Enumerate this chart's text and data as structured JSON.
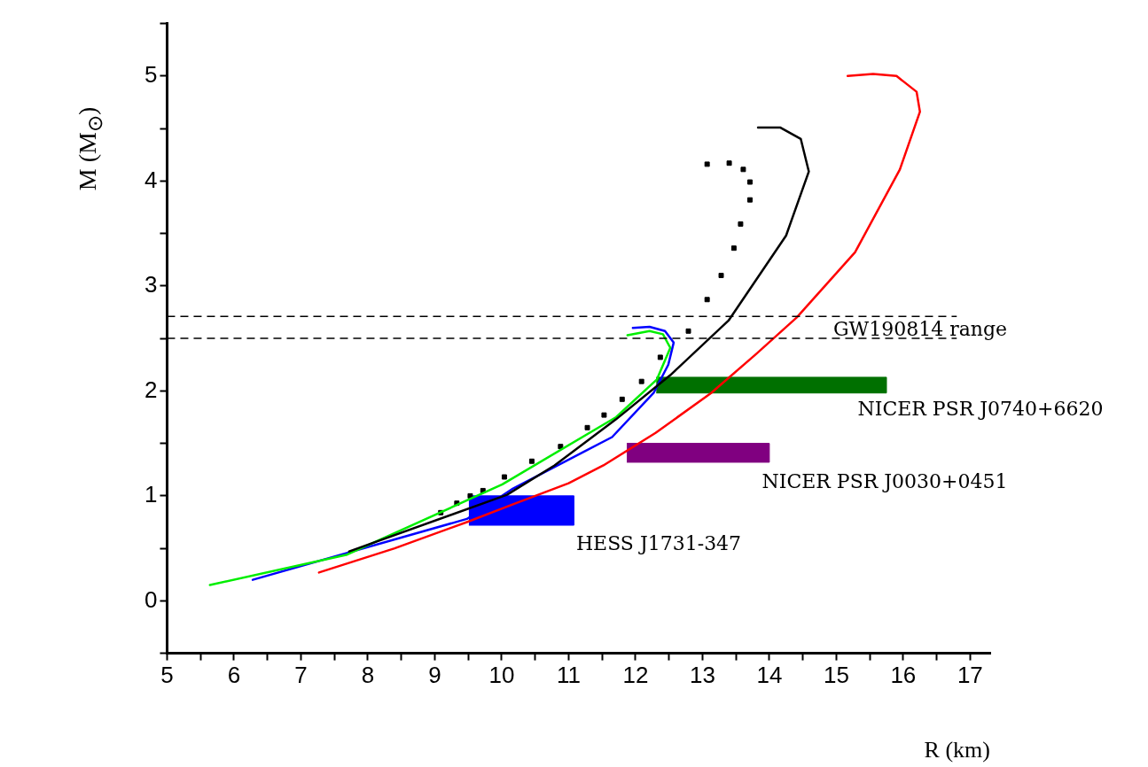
{
  "chart_data": {
    "type": "line",
    "xlabel": "R (km)",
    "ylabel": "M (M$_{⊙}$)",
    "xlim": [
      5,
      17.3
    ],
    "ylim": [
      -0.5,
      5.5
    ],
    "xticks": [
      5,
      {
        "value": 5.5,
        "label": null
      },
      6,
      {
        "value": 6.5,
        "label": null
      },
      7,
      {
        "value": 7.5,
        "label": null
      },
      8,
      {
        "value": 8.5,
        "label": null
      },
      9,
      {
        "value": 9.5,
        "label": null
      },
      10,
      {
        "value": 10.5,
        "label": null
      },
      11,
      {
        "value": 11.5,
        "label": null
      },
      12,
      {
        "value": 12.5,
        "label": null
      },
      13,
      {
        "value": 13.5,
        "label": null
      },
      14,
      {
        "value": 14.5,
        "label": null
      },
      15,
      {
        "value": 15.5,
        "label": null
      },
      16,
      {
        "value": 16.5,
        "label": null
      },
      17
    ],
    "yticks": [
      {
        "value": -0.5,
        "label": null
      },
      0,
      {
        "value": 0.5,
        "label": null
      },
      1,
      {
        "value": 1.5,
        "label": null
      },
      2,
      {
        "value": 2.5,
        "label": null
      },
      3,
      {
        "value": 3.5,
        "label": null
      },
      4,
      {
        "value": 4.5,
        "label": null
      },
      5,
      {
        "value": 5.5,
        "label": null
      }
    ],
    "grid": false,
    "legend": false,
    "series": [
      {
        "type": "area",
        "color": "#007000",
        "x": [
          12.31,
          15.75,
          15.75,
          12.31
        ],
        "values": [
          1.98,
          1.98,
          2.13,
          2.13
        ]
      },
      {
        "type": "area",
        "color": "#800080",
        "x": [
          11.87,
          14.0,
          14.0,
          11.87
        ],
        "values": [
          1.32,
          1.32,
          1.5,
          1.5
        ]
      },
      {
        "type": "area",
        "color": "#0000ff",
        "x": [
          9.51,
          11.08,
          11.08,
          9.51
        ],
        "values": [
          0.72,
          0.72,
          1.0,
          1.0
        ]
      },
      {
        "color": "#ff0000",
        "x": [
          7.27,
          8.4,
          9.48,
          10.17,
          11.0,
          11.52,
          12.3,
          13.13,
          13.8,
          14.41,
          15.28,
          15.95,
          16.25,
          16.2,
          15.9,
          15.55,
          15.17
        ],
        "values": [
          0.27,
          0.5,
          0.75,
          0.92,
          1.12,
          1.29,
          1.6,
          1.98,
          2.35,
          2.7,
          3.32,
          4.11,
          4.66,
          4.85,
          5.0,
          5.02,
          5.0
        ]
      },
      {
        "color": "#000000",
        "x": [
          7.72,
          10.08,
          10.79,
          11.71,
          12.52,
          13.39,
          14.25,
          14.59,
          14.47,
          14.16,
          13.83
        ],
        "values": [
          0.47,
          1.01,
          1.29,
          1.73,
          2.15,
          2.67,
          3.48,
          4.09,
          4.4,
          4.51,
          4.51
        ]
      },
      {
        "color": "#00ee00",
        "x": [
          5.64,
          7.69,
          10.01,
          11.71,
          12.32,
          12.52,
          12.41,
          12.21,
          11.88
        ],
        "values": [
          0.15,
          0.44,
          1.11,
          1.75,
          2.11,
          2.41,
          2.54,
          2.57,
          2.53
        ]
      },
      {
        "color": "#0000ff",
        "x": [
          6.28,
          9.48,
          10.17,
          11.65,
          12.27,
          12.49,
          12.57,
          12.44,
          12.21,
          11.96
        ],
        "values": [
          0.2,
          0.78,
          1.07,
          1.56,
          1.98,
          2.25,
          2.46,
          2.57,
          2.61,
          2.6
        ]
      },
      {
        "type": "scatter",
        "marker": "square",
        "color": "#000000",
        "x": [
          9.09,
          9.33,
          9.53,
          9.72,
          10.04,
          10.45,
          10.88,
          11.28,
          11.53,
          11.8,
          12.09,
          12.37,
          12.79,
          13.07,
          13.28,
          13.47,
          13.57,
          13.71,
          13.71,
          13.61,
          13.4,
          13.07
        ],
        "values": [
          0.84,
          0.93,
          1.0,
          1.05,
          1.18,
          1.33,
          1.47,
          1.65,
          1.77,
          1.92,
          2.09,
          2.32,
          2.57,
          2.87,
          3.1,
          3.36,
          3.59,
          3.82,
          3.99,
          4.11,
          4.17,
          4.16
        ]
      }
    ],
    "ref_lines": [
      {
        "axis": "y",
        "value": 2.71,
        "line_style": "dashed",
        "color": "#000000"
      },
      {
        "axis": "y",
        "value": 2.5,
        "line_style": "dashed",
        "color": "#000000"
      }
    ],
    "annotations": [
      "GW190814 range",
      "NICER PSR J0740+6620",
      "NICER PSR J0030+0451",
      "HESS J1731-347"
    ]
  }
}
